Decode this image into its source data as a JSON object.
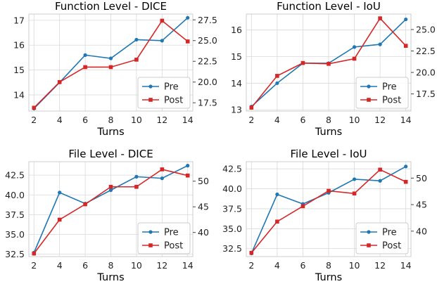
{
  "colors": {
    "pre": "#1f77b4",
    "post": "#d62728",
    "grid": "#d9d9d9",
    "axis": "#cccccc"
  },
  "chart_data": [
    {
      "type": "line",
      "title": "Function Level - DICE",
      "xlabel": "Turns",
      "x": [
        2,
        4,
        6,
        8,
        10,
        12,
        14
      ],
      "x_ticks": [
        "2",
        "4",
        "6",
        "8",
        "10",
        "12",
        "14"
      ],
      "xlim": [
        1.6,
        14.4
      ],
      "left_axis": {
        "ticks": [
          "14",
          "15",
          "16",
          "17"
        ],
        "tick_values": [
          14,
          15,
          16,
          17
        ],
        "ylim": [
          13.35,
          17.25
        ]
      },
      "right_axis": {
        "ticks": [
          "17.5",
          "20.0",
          "22.5",
          "25.0",
          "27.5"
        ],
        "tick_values": [
          17.5,
          20.0,
          22.5,
          25.0,
          27.5
        ],
        "ylim": [
          16.5,
          28.2
        ]
      },
      "series": [
        {
          "name": "Pre",
          "axis": "left",
          "marker": "circle",
          "values": [
            13.45,
            14.5,
            15.6,
            15.47,
            16.22,
            16.18,
            17.1
          ]
        },
        {
          "name": "Post",
          "axis": "right",
          "marker": "square",
          "values": [
            16.9,
            20.0,
            21.8,
            21.8,
            22.7,
            27.4,
            24.9
          ]
        }
      ],
      "legend": {
        "location": "lower-right",
        "entries": [
          "Pre",
          "Post"
        ]
      },
      "grid": true
    },
    {
      "type": "line",
      "title": "Function Level - IoU",
      "xlabel": "Turns",
      "x": [
        2,
        4,
        6,
        8,
        10,
        12,
        14
      ],
      "x_ticks": [
        "2",
        "4",
        "6",
        "8",
        "10",
        "12",
        "14"
      ],
      "xlim": [
        1.6,
        14.4
      ],
      "left_axis": {
        "ticks": [
          "13",
          "14",
          "15",
          "16"
        ],
        "tick_values": [
          13,
          14,
          15,
          16
        ],
        "ylim": [
          12.95,
          16.6
        ]
      },
      "right_axis": {
        "ticks": [
          "17.5",
          "20.0",
          "22.5",
          "25.0"
        ],
        "tick_values": [
          17.5,
          20.0,
          22.5,
          25.0
        ],
        "ylim": [
          15.5,
          26.8
        ]
      },
      "series": [
        {
          "name": "Pre",
          "axis": "left",
          "marker": "circle",
          "values": [
            13.12,
            14.0,
            14.75,
            14.75,
            15.36,
            15.46,
            16.4
          ]
        },
        {
          "name": "Post",
          "axis": "right",
          "marker": "square",
          "values": [
            15.9,
            19.6,
            21.1,
            21.0,
            21.6,
            26.3,
            23.1
          ]
        }
      ],
      "legend": {
        "location": "lower-right",
        "entries": [
          "Pre",
          "Post"
        ]
      },
      "grid": true
    },
    {
      "type": "line",
      "title": "File Level - DICE",
      "xlabel": "Turns",
      "x": [
        2,
        4,
        6,
        8,
        10,
        12,
        14
      ],
      "x_ticks": [
        "2",
        "4",
        "6",
        "8",
        "10",
        "12",
        "14"
      ],
      "xlim": [
        1.6,
        14.4
      ],
      "left_axis": {
        "ticks": [
          "32.5",
          "35.0",
          "37.5",
          "40.0",
          "42.5"
        ],
        "tick_values": [
          32.5,
          35.0,
          37.5,
          40.0,
          42.5
        ],
        "ylim": [
          32.2,
          44.2
        ]
      },
      "right_axis": {
        "ticks": [
          "40",
          "45",
          "50"
        ],
        "tick_values": [
          40,
          45,
          50
        ],
        "ylim": [
          35.3,
          53.8
        ]
      },
      "series": [
        {
          "name": "Pre",
          "axis": "left",
          "marker": "circle",
          "values": [
            32.7,
            40.3,
            38.9,
            40.6,
            42.3,
            42.1,
            43.7
          ]
        },
        {
          "name": "Post",
          "axis": "right",
          "marker": "square",
          "values": [
            35.9,
            42.5,
            45.5,
            48.9,
            48.9,
            52.3,
            51.1
          ]
        }
      ],
      "legend": {
        "location": "lower-right",
        "entries": [
          "Pre",
          "Post"
        ]
      },
      "grid": true
    },
    {
      "type": "line",
      "title": "File Level - IoU",
      "xlabel": "Turns",
      "x": [
        2,
        4,
        6,
        8,
        10,
        12,
        14
      ],
      "x_ticks": [
        "2",
        "4",
        "6",
        "8",
        "10",
        "12",
        "14"
      ],
      "xlim": [
        1.6,
        14.4
      ],
      "left_axis": {
        "ticks": [
          "32.5",
          "35.0",
          "37.5",
          "40.0",
          "42.5"
        ],
        "tick_values": [
          32.5,
          35.0,
          37.5,
          40.0,
          42.5
        ],
        "ylim": [
          31.5,
          43.4
        ]
      },
      "right_axis": {
        "ticks": [
          "40",
          "45",
          "50"
        ],
        "tick_values": [
          40,
          45,
          50
        ],
        "ylim": [
          35.2,
          53.1
        ]
      },
      "series": [
        {
          "name": "Pre",
          "axis": "left",
          "marker": "circle",
          "values": [
            31.9,
            39.3,
            38.1,
            39.5,
            41.2,
            41.0,
            42.8
          ]
        },
        {
          "name": "Post",
          "axis": "right",
          "marker": "square",
          "values": [
            35.9,
            41.8,
            44.7,
            47.6,
            47.1,
            51.6,
            49.3
          ]
        }
      ],
      "legend": {
        "location": "lower-right",
        "entries": [
          "Pre",
          "Post"
        ]
      },
      "grid": true
    }
  ]
}
